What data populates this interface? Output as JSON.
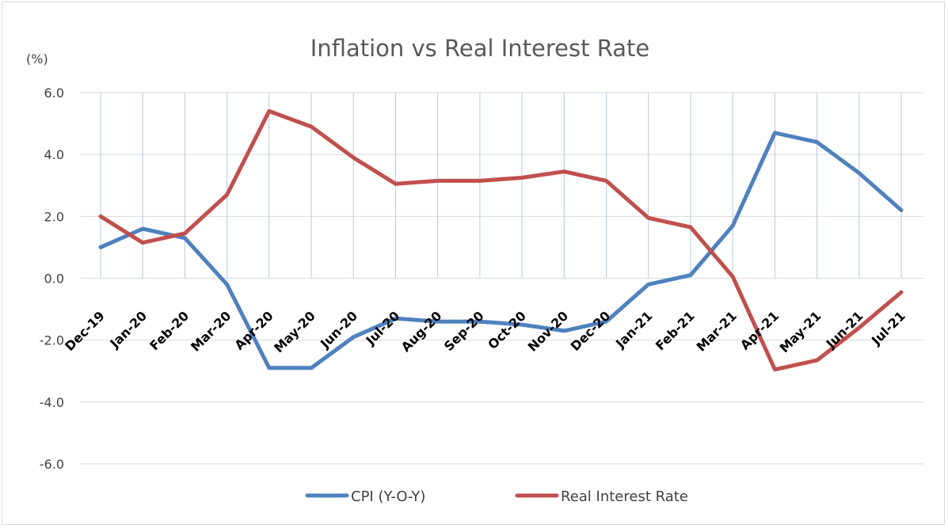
{
  "chart_data": {
    "type": "line",
    "title": "Inflation vs Real Interest Rate",
    "ylabel": "(%)",
    "xlabel": "",
    "ylim": [
      -6,
      6
    ],
    "yticks": [
      "6.0",
      "4.0",
      "2.0",
      "0.0",
      "-2.0",
      "-4.0",
      "-6.0"
    ],
    "ytick_values": [
      6,
      4,
      2,
      0,
      -2,
      -4,
      -6
    ],
    "grid": true,
    "legend_position": "bottom",
    "categories": [
      "Dec-19",
      "Jan-20",
      "Feb-20",
      "Mar-20",
      "Apr-20",
      "May-20",
      "Jun-20",
      "Jul-20",
      "Aug-20",
      "Sep-20",
      "Oct-20",
      "Nov-20",
      "Dec-20",
      "Jan-21",
      "Feb-21",
      "Mar-21",
      "Apr-21",
      "May-21",
      "Jun-21",
      "Jul-21"
    ],
    "series": [
      {
        "name": "CPI (Y-O-Y)",
        "color": "#4f81bd",
        "values": [
          1.0,
          1.6,
          1.3,
          -0.2,
          -2.9,
          -2.9,
          -1.9,
          -1.3,
          -1.4,
          -1.4,
          -1.5,
          -1.7,
          -1.4,
          -0.2,
          0.1,
          1.7,
          4.7,
          4.4,
          3.4,
          2.2
        ]
      },
      {
        "name": "Real Interest Rate",
        "color": "#c0504d",
        "values": [
          2.0,
          1.15,
          1.45,
          2.7,
          5.4,
          4.9,
          3.9,
          3.05,
          3.15,
          3.15,
          3.25,
          3.45,
          3.15,
          1.95,
          1.65,
          0.05,
          -2.95,
          -2.65,
          -1.6,
          -0.45
        ]
      }
    ]
  }
}
